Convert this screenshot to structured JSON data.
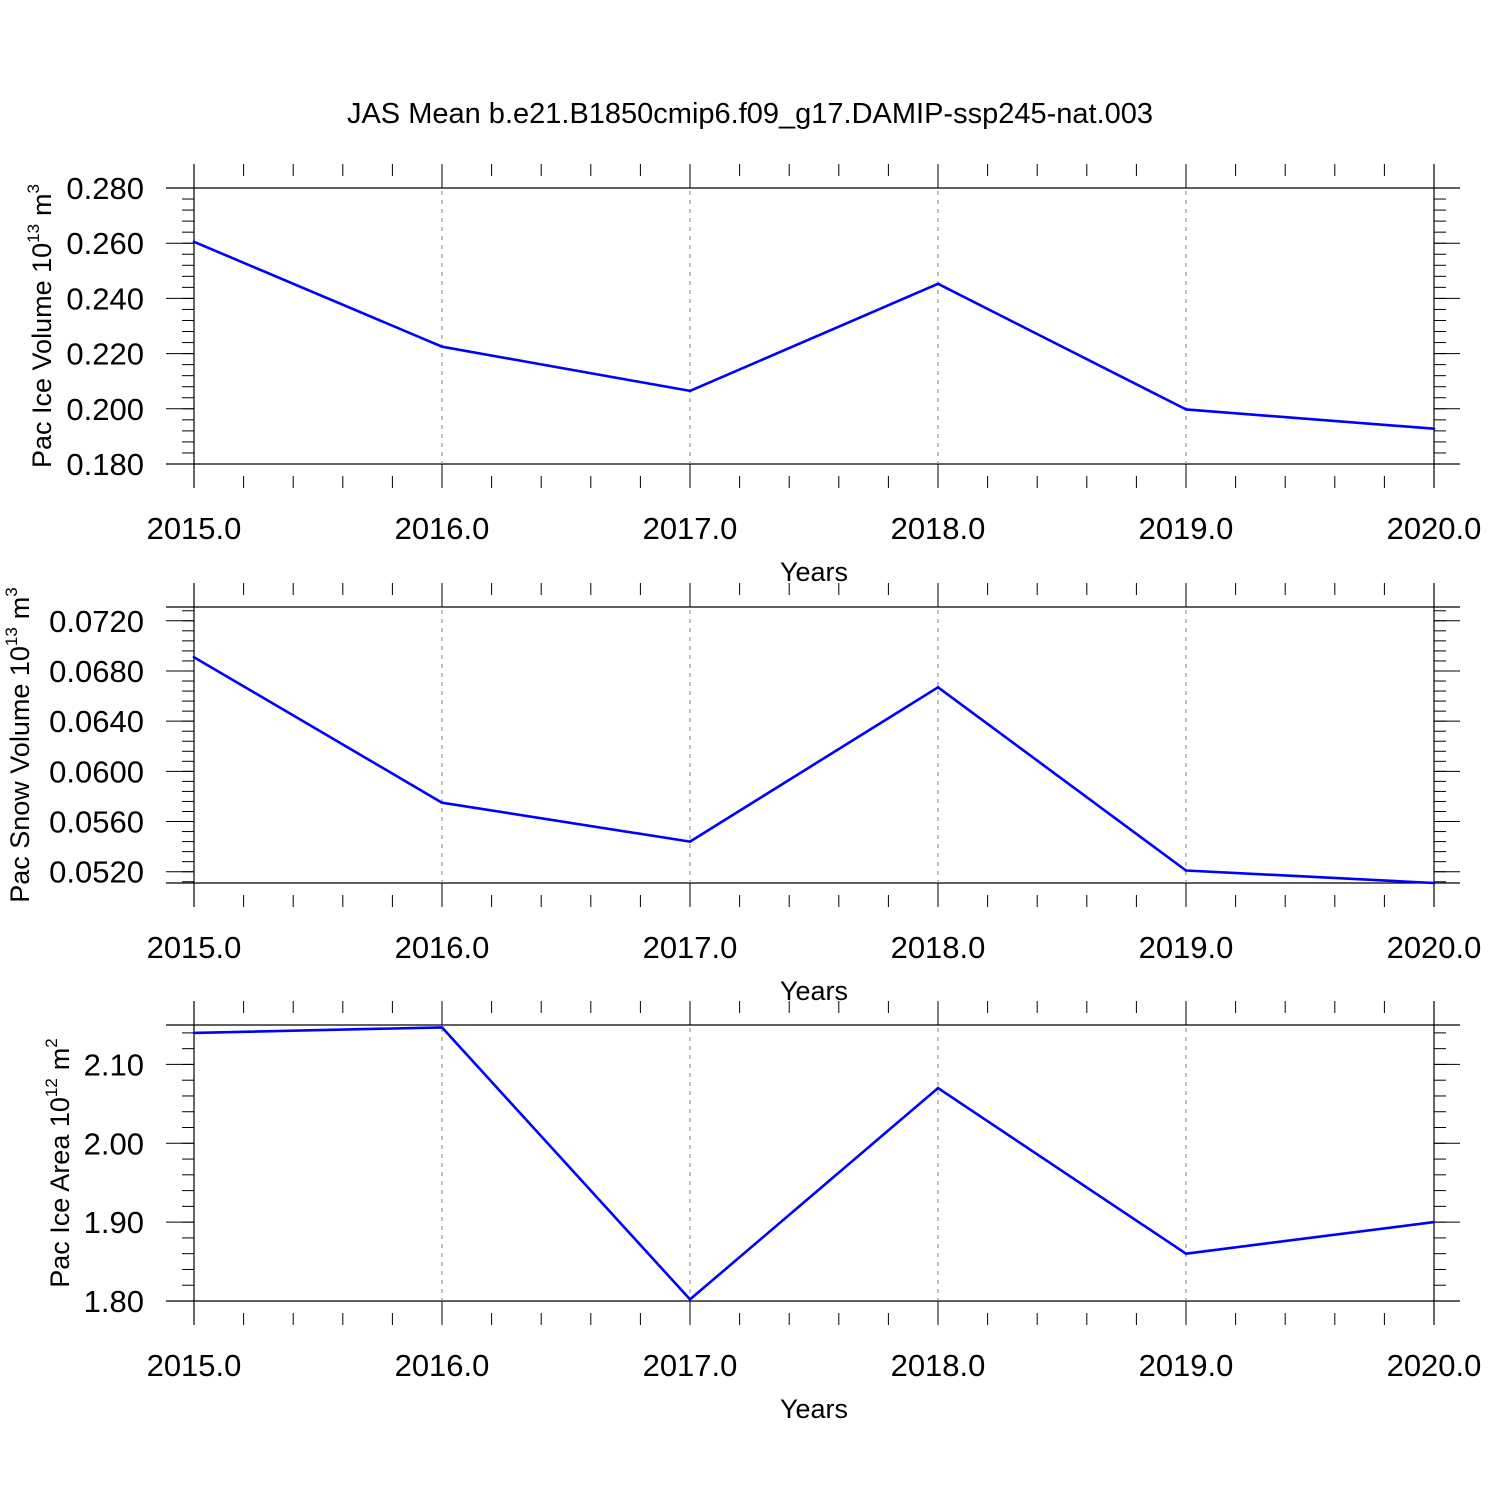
{
  "title": "JAS Mean b.e21.B1850cmip6.f09_g17.DAMIP-ssp245-nat.003",
  "colors": {
    "series": "#0000ff",
    "axis": "#000000",
    "grid": "#808080"
  },
  "chart_data": [
    {
      "type": "line",
      "xlabel": "Years",
      "ylabel": "Pac Ice Volume 10",
      "ylabel_exp": "13",
      "ylabel_unit": "m",
      "ylabel_unit_exp": "3",
      "xlim": [
        2015.0,
        2020.0
      ],
      "ylim": [
        0.18,
        0.28
      ],
      "x_ticks": [
        "2015.0",
        "2016.0",
        "2017.0",
        "2018.0",
        "2019.0",
        "2020.0"
      ],
      "y_ticks": [
        "0.180",
        "0.200",
        "0.220",
        "0.240",
        "0.260",
        "0.280"
      ],
      "grid": "vertical dashed at major x ticks",
      "x": [
        2015,
        2016,
        2017,
        2018,
        2019,
        2020
      ],
      "values": [
        0.2605,
        0.2225,
        0.2065,
        0.2453,
        0.1998,
        0.1928
      ]
    },
    {
      "type": "line",
      "xlabel": "Years",
      "ylabel": "Pac Snow Volume 10",
      "ylabel_exp": "13",
      "ylabel_unit": "m",
      "ylabel_unit_exp": "3",
      "xlim": [
        2015.0,
        2020.0
      ],
      "ylim": [
        0.0511,
        0.0731
      ],
      "x_ticks": [
        "2015.0",
        "2016.0",
        "2017.0",
        "2018.0",
        "2019.0",
        "2020.0"
      ],
      "y_ticks": [
        "0.0520",
        "0.0560",
        "0.0600",
        "0.0640",
        "0.0680",
        "0.0720"
      ],
      "grid": "vertical dashed at major x ticks",
      "x": [
        2015,
        2016,
        2017,
        2018,
        2019,
        2020
      ],
      "values": [
        0.0691,
        0.0575,
        0.0544,
        0.0667,
        0.0521,
        0.0511
      ]
    },
    {
      "type": "line",
      "xlabel": "Years",
      "ylabel": "Pac Ice Area 10",
      "ylabel_exp": "12",
      "ylabel_unit": "m",
      "ylabel_unit_exp": "2",
      "xlim": [
        2015.0,
        2020.0
      ],
      "ylim": [
        1.8,
        2.15
      ],
      "x_ticks": [
        "2015.0",
        "2016.0",
        "2017.0",
        "2018.0",
        "2019.0",
        "2020.0"
      ],
      "y_ticks": [
        "1.80",
        "1.90",
        "2.00",
        "2.10"
      ],
      "grid": "vertical dashed at major x ticks",
      "x": [
        2015,
        2016,
        2017,
        2018,
        2019,
        2020
      ],
      "values": [
        2.14,
        2.147,
        1.802,
        2.07,
        1.86,
        1.9
      ]
    }
  ]
}
